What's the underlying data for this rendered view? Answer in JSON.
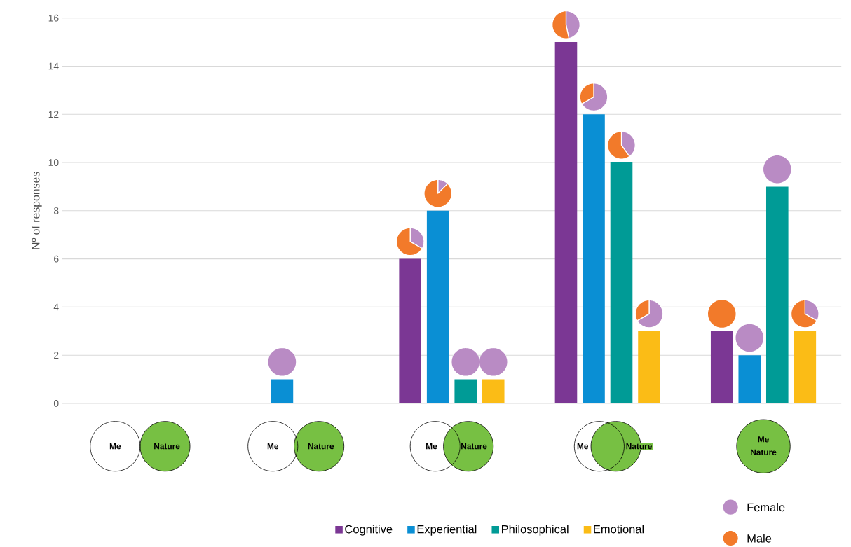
{
  "chart_data": [
    {
      "type": "bar",
      "ylabel": "Nº of responses",
      "categories": [
        null,
        null,
        null,
        null,
        null
      ],
      "ylim": [
        0,
        16
      ],
      "yticks": [
        0,
        2,
        4,
        6,
        8,
        10,
        12,
        14,
        16
      ],
      "grid": "y",
      "legend": "bottom",
      "annotations": [
        "Me",
        "Nature",
        "Me",
        "Nature",
        "Me",
        "Nature",
        "Me",
        "Nature",
        "Me",
        "Nature"
      ],
      "series": [
        {
          "name": "Cognitive",
          "color": "#7b3794",
          "values": [
            null,
            null,
            6,
            15,
            3
          ]
        },
        {
          "name": "Experiential",
          "color": "#0a8fd4",
          "values": [
            null,
            1,
            8,
            12,
            2
          ]
        },
        {
          "name": "Philosophical",
          "color": "#009b96",
          "values": [
            null,
            null,
            1,
            10,
            9
          ]
        },
        {
          "name": "Emotional",
          "color": "#fbbc16",
          "values": [
            null,
            null,
            1,
            3,
            3
          ]
        }
      ]
    },
    {
      "type": "pie",
      "categories": [
        "Female",
        "Male"
      ],
      "values": [
        100,
        0
      ],
      "colors": [
        "#b98bc4",
        "#f27a2a"
      ],
      "legend": "bottom right"
    },
    {
      "type": "pie",
      "categories": [
        null,
        null
      ],
      "values": [
        33.3,
        66.7
      ],
      "colors": [
        "#b98bc4",
        "#f27a2a"
      ]
    },
    {
      "type": "pie",
      "categories": [
        null,
        null
      ],
      "values": [
        12.5,
        87.5
      ],
      "colors": [
        "#b98bc4",
        "#f27a2a"
      ]
    },
    {
      "type": "pie",
      "categories": [
        null,
        null
      ],
      "values": [
        100,
        0
      ],
      "colors": [
        "#b98bc4",
        "#f27a2a"
      ]
    },
    {
      "type": "pie",
      "categories": [
        null,
        null
      ],
      "values": [
        100,
        0
      ],
      "colors": [
        "#b98bc4",
        "#f27a2a"
      ]
    },
    {
      "type": "pie",
      "categories": [
        null,
        null
      ],
      "values": [
        46.7,
        53.3
      ],
      "colors": [
        "#b98bc4",
        "#f27a2a"
      ]
    },
    {
      "type": "pie",
      "categories": [
        null,
        null
      ],
      "values": [
        66.7,
        33.3
      ],
      "colors": [
        "#b98bc4",
        "#f27a2a"
      ]
    },
    {
      "type": "pie",
      "categories": [
        null,
        null
      ],
      "values": [
        40,
        60
      ],
      "colors": [
        "#b98bc4",
        "#f27a2a"
      ]
    },
    {
      "type": "pie",
      "categories": [
        null,
        null
      ],
      "values": [
        66.7,
        33.3
      ],
      "colors": [
        "#b98bc4",
        "#f27a2a"
      ]
    },
    {
      "type": "pie",
      "categories": [
        null,
        null
      ],
      "values": [
        0,
        100
      ],
      "colors": [
        "#b98bc4",
        "#f27a2a"
      ]
    },
    {
      "type": "pie",
      "categories": [
        null,
        null
      ],
      "values": [
        100,
        0
      ],
      "colors": [
        "#b98bc4",
        "#f27a2a"
      ]
    },
    {
      "type": "pie",
      "categories": [
        null,
        null
      ],
      "values": [
        100,
        0
      ],
      "colors": [
        "#b98bc4",
        "#f27a2a"
      ]
    },
    {
      "type": "pie",
      "categories": [
        null,
        null
      ],
      "values": [
        33.3,
        66.7
      ],
      "colors": [
        "#b98bc4",
        "#f27a2a"
      ]
    }
  ]
}
